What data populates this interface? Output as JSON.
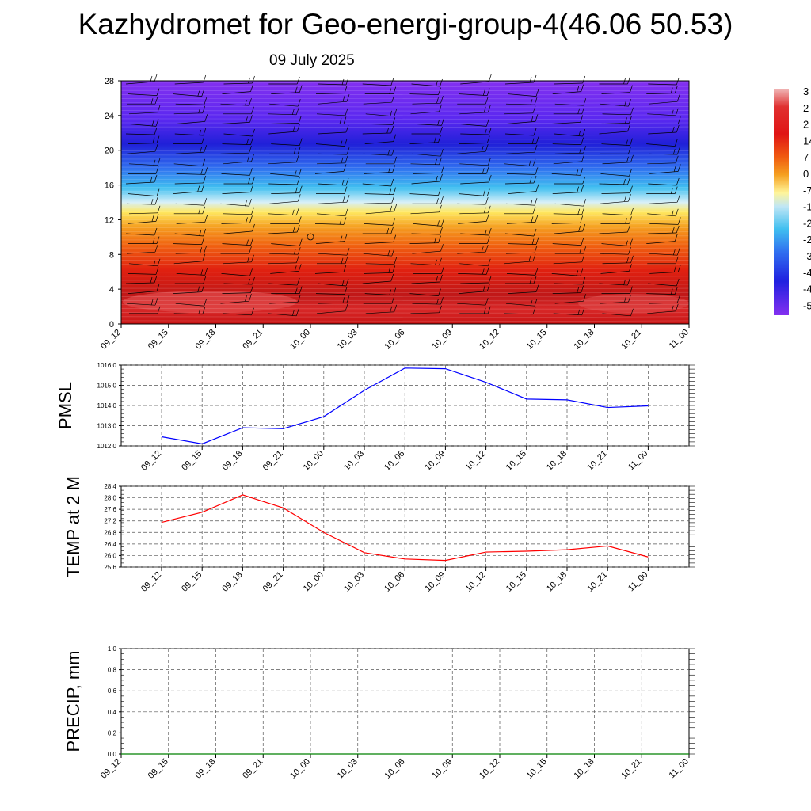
{
  "title": "Kazhydromet for Geo-energi-group-4(46.06 50.53)",
  "date": "09 July 2025",
  "chart_data": [
    {
      "type": "heatmap",
      "name": "cross-section",
      "x_ticks": [
        "09_12",
        "09_15",
        "09_18",
        "09_21",
        "10_00",
        "10_03",
        "10_06",
        "10_09",
        "10_12",
        "10_15",
        "10_18",
        "10_21",
        "11_00"
      ],
      "y_ticks": [
        "0",
        "4",
        "8",
        "12",
        "16",
        "20",
        "24",
        "28"
      ],
      "ylim": [
        0,
        28
      ],
      "colorbar_labels": [
        "3",
        "2",
        "2",
        "14",
        "7",
        "0",
        "-7",
        "-1",
        "-2",
        "-2",
        "-3",
        "-4",
        "-4",
        "-5"
      ],
      "colorbar_colors": [
        "#f0b8b8",
        "#e03030",
        "#e01515",
        "#e83010",
        "#f05a10",
        "#f59010",
        "#fbd030",
        "#fff59a",
        "#bfe6f5",
        "#48c2f0",
        "#1f8ff0",
        "#3f6ff5",
        "#2230e8",
        "#2020e0",
        "#7a28f0"
      ]
    },
    {
      "type": "line",
      "name": "pmsl",
      "ylabel": "PMSL",
      "categories": [
        "09_12",
        "09_15",
        "09_18",
        "09_21",
        "10_00",
        "10_03",
        "10_06",
        "10_09",
        "10_12",
        "10_15",
        "10_18",
        "10_21",
        "11_00"
      ],
      "values": [
        1012.45,
        1012.1,
        1012.9,
        1012.85,
        1013.45,
        1014.75,
        1015.85,
        1015.82,
        1015.15,
        1014.32,
        1014.28,
        1013.9,
        1013.98
      ],
      "ylim": [
        1012.0,
        1016.0
      ],
      "y_ticks": [
        "1016.0",
        "1015.0",
        "1014.0",
        "1013.0",
        "1012.0"
      ],
      "color": "#0000ff"
    },
    {
      "type": "line",
      "name": "temp",
      "ylabel": "TEMP at 2 M",
      "categories": [
        "09_12",
        "09_15",
        "09_18",
        "09_21",
        "10_00",
        "10_03",
        "10_06",
        "10_09",
        "10_12",
        "10_15",
        "10_18",
        "10_21",
        "11_00"
      ],
      "values": [
        27.15,
        27.5,
        28.1,
        27.65,
        26.8,
        26.1,
        25.88,
        25.83,
        26.12,
        26.15,
        26.2,
        26.33,
        25.95
      ],
      "ylim": [
        25.6,
        28.4
      ],
      "y_ticks": [
        "28.4",
        "28.0",
        "27.6",
        "27.2",
        "26.8",
        "26.4",
        "26.0",
        "25.6"
      ],
      "color": "#ff0000"
    },
    {
      "type": "line",
      "name": "precip",
      "ylabel": "PRECIP, mm",
      "categories": [
        "09_12",
        "09_15",
        "09_18",
        "09_21",
        "10_00",
        "10_03",
        "10_06",
        "10_09",
        "10_12",
        "10_15",
        "10_18",
        "10_21",
        "11_00"
      ],
      "values": [
        0,
        0,
        0,
        0,
        0,
        0,
        0,
        0,
        0,
        0,
        0,
        0,
        0
      ],
      "ylim": [
        0.0,
        1.0
      ],
      "y_ticks": [
        "1.0",
        "0.8",
        "0.6",
        "0.4",
        "0.2",
        "0.0"
      ],
      "color": "#008000"
    }
  ]
}
